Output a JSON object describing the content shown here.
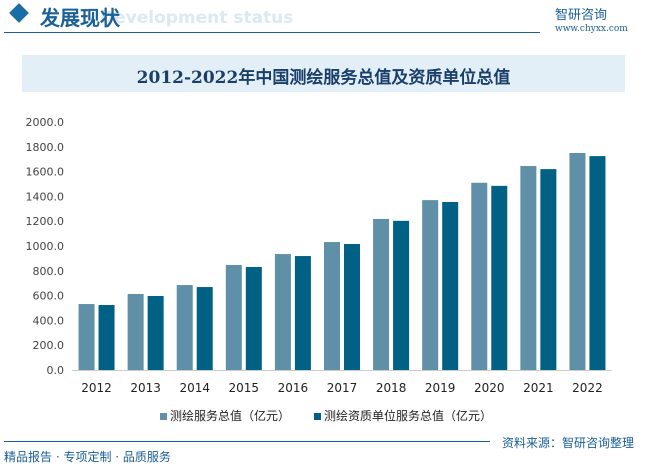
{
  "header": {
    "section": "发展现状",
    "section_en": "Development status",
    "logo": "智研咨询",
    "url": "www.chyxx.com"
  },
  "footer": {
    "source": "资料来源：智研咨询整理",
    "tagline": "精品报告 · 专项定制 · 品质服务"
  },
  "colors": {
    "series1": "#5f90a8",
    "series2": "#006185"
  },
  "chart_data": {
    "type": "bar",
    "title": "2012-2022年中国测绘服务总值及资质单位总值",
    "categories": [
      "2012",
      "2013",
      "2014",
      "2015",
      "2016",
      "2017",
      "2018",
      "2019",
      "2020",
      "2021",
      "2022"
    ],
    "series": [
      {
        "name": "测绘服务总值（亿元）",
        "values": [
          532,
          613,
          685,
          847,
          935,
          1032,
          1218,
          1370,
          1510,
          1645,
          1750
        ]
      },
      {
        "name": "测绘资质单位服务总值（亿元）",
        "values": [
          524,
          597,
          669,
          831,
          919,
          1016,
          1203,
          1355,
          1485,
          1620,
          1725
        ]
      }
    ],
    "yticks": [
      "0.0",
      "200.0",
      "400.0",
      "600.0",
      "800.0",
      "1000.0",
      "1200.0",
      "1400.0",
      "1600.0",
      "1800.0",
      "2000.0"
    ],
    "ylim": [
      0,
      2000
    ],
    "grid": false,
    "legend": "bottom"
  }
}
